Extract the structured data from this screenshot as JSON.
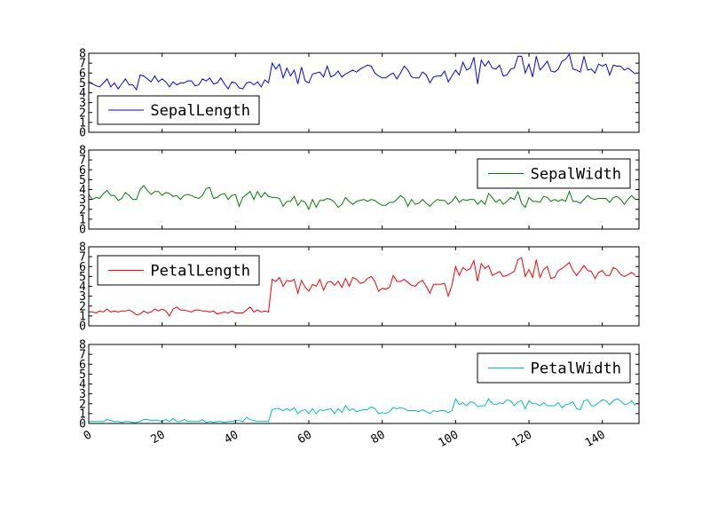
{
  "chart_data": {
    "type": "line",
    "x": [
      0,
      1,
      2,
      3,
      4,
      5,
      6,
      7,
      8,
      9,
      10,
      11,
      12,
      13,
      14,
      15,
      16,
      17,
      18,
      19,
      20,
      21,
      22,
      23,
      24,
      25,
      26,
      27,
      28,
      29,
      30,
      31,
      32,
      33,
      34,
      35,
      36,
      37,
      38,
      39,
      40,
      41,
      42,
      43,
      44,
      45,
      46,
      47,
      48,
      49,
      50,
      51,
      52,
      53,
      54,
      55,
      56,
      57,
      58,
      59,
      60,
      61,
      62,
      63,
      64,
      65,
      66,
      67,
      68,
      69,
      70,
      71,
      72,
      73,
      74,
      75,
      76,
      77,
      78,
      79,
      80,
      81,
      82,
      83,
      84,
      85,
      86,
      87,
      88,
      89,
      90,
      91,
      92,
      93,
      94,
      95,
      96,
      97,
      98,
      99,
      100,
      101,
      102,
      103,
      104,
      105,
      106,
      107,
      108,
      109,
      110,
      111,
      112,
      113,
      114,
      115,
      116,
      117,
      118,
      119,
      120,
      121,
      122,
      123,
      124,
      125,
      126,
      127,
      128,
      129,
      130,
      131,
      132,
      133,
      134,
      135,
      136,
      137,
      138,
      139,
      140,
      141,
      142,
      143,
      144,
      145,
      146,
      147,
      148,
      149
    ],
    "xlim": [
      0,
      150
    ],
    "xticks": [
      "0",
      "20",
      "40",
      "60",
      "80",
      "100",
      "120",
      "140"
    ],
    "ylim": [
      0,
      8
    ],
    "yticks": [
      "0",
      "1",
      "2",
      "3",
      "4",
      "5",
      "6",
      "7",
      "8"
    ],
    "series": [
      {
        "name": "SepalLength",
        "color": "#0000ff",
        "legend_loc": "lower-left",
        "values": [
          5.1,
          4.9,
          4.7,
          4.6,
          5.0,
          5.4,
          4.6,
          5.0,
          4.4,
          4.9,
          5.4,
          4.8,
          4.8,
          4.3,
          5.8,
          5.7,
          5.4,
          5.1,
          5.7,
          5.1,
          5.4,
          5.1,
          4.6,
          5.1,
          4.8,
          5.0,
          5.0,
          5.2,
          5.2,
          4.7,
          4.8,
          5.4,
          5.2,
          5.5,
          4.9,
          5.0,
          5.5,
          4.9,
          4.4,
          5.1,
          5.0,
          4.5,
          4.4,
          5.0,
          5.1,
          4.8,
          5.1,
          4.6,
          5.3,
          5.0,
          7.0,
          6.4,
          6.9,
          5.5,
          6.5,
          5.7,
          6.3,
          4.9,
          6.6,
          5.2,
          5.0,
          5.9,
          6.0,
          6.1,
          5.6,
          6.7,
          5.6,
          5.8,
          6.2,
          5.6,
          5.9,
          6.1,
          6.3,
          6.1,
          6.4,
          6.6,
          6.8,
          6.7,
          6.0,
          5.7,
          5.5,
          5.5,
          5.8,
          6.0,
          5.4,
          6.0,
          6.7,
          6.3,
          5.6,
          5.5,
          5.5,
          6.1,
          5.8,
          5.0,
          5.6,
          5.7,
          5.7,
          6.2,
          5.1,
          5.7,
          6.3,
          5.8,
          7.1,
          6.3,
          6.5,
          7.6,
          4.9,
          7.3,
          6.7,
          7.2,
          6.5,
          6.4,
          6.8,
          5.7,
          5.8,
          6.4,
          6.5,
          7.7,
          7.7,
          6.0,
          6.9,
          5.6,
          7.7,
          6.3,
          6.7,
          7.2,
          6.2,
          6.1,
          6.4,
          7.2,
          7.4,
          7.9,
          6.4,
          6.3,
          6.1,
          7.7,
          6.3,
          6.4,
          6.0,
          6.9,
          6.7,
          6.9,
          5.8,
          6.8,
          6.7,
          6.7,
          6.3,
          6.5,
          6.2,
          5.9
        ]
      },
      {
        "name": "SepalWidth",
        "color": "#008000",
        "legend_loc": "upper-right",
        "values": [
          3.5,
          3.0,
          3.2,
          3.1,
          3.6,
          3.9,
          3.4,
          3.4,
          2.9,
          3.1,
          3.7,
          3.4,
          3.0,
          3.0,
          4.0,
          4.4,
          3.9,
          3.5,
          3.8,
          3.8,
          3.4,
          3.7,
          3.6,
          3.3,
          3.4,
          3.0,
          3.4,
          3.5,
          3.4,
          3.2,
          3.1,
          3.4,
          4.1,
          4.2,
          3.1,
          3.2,
          3.5,
          3.6,
          3.0,
          3.4,
          3.5,
          2.3,
          3.2,
          3.5,
          3.8,
          3.0,
          3.8,
          3.2,
          3.7,
          3.3,
          3.2,
          3.2,
          3.1,
          2.3,
          2.8,
          2.8,
          3.3,
          2.4,
          2.9,
          2.7,
          2.0,
          3.0,
          2.2,
          2.9,
          2.9,
          3.1,
          3.0,
          2.7,
          2.2,
          2.5,
          3.2,
          2.8,
          2.5,
          2.8,
          2.9,
          3.0,
          2.8,
          3.0,
          2.9,
          2.6,
          2.4,
          2.4,
          2.7,
          2.7,
          3.0,
          3.4,
          3.1,
          2.3,
          3.0,
          2.5,
          2.6,
          3.0,
          2.6,
          2.3,
          2.7,
          3.0,
          2.9,
          2.9,
          2.5,
          2.8,
          3.3,
          2.7,
          3.0,
          2.9,
          3.0,
          3.0,
          2.5,
          2.9,
          2.5,
          3.6,
          3.2,
          2.7,
          3.0,
          2.5,
          2.8,
          3.2,
          3.0,
          3.8,
          2.6,
          2.2,
          3.2,
          2.8,
          2.8,
          2.7,
          3.3,
          3.2,
          2.8,
          3.0,
          2.8,
          3.0,
          2.8,
          3.8,
          2.8,
          2.8,
          2.6,
          3.0,
          3.4,
          3.1,
          3.0,
          3.1,
          3.1,
          3.1,
          2.7,
          3.2,
          3.3,
          3.0,
          2.5,
          3.0,
          3.4,
          3.0
        ]
      },
      {
        "name": "PetalLength",
        "color": "#ff0000",
        "legend_loc": "upper-left",
        "values": [
          1.4,
          1.4,
          1.3,
          1.5,
          1.4,
          1.7,
          1.4,
          1.5,
          1.4,
          1.5,
          1.5,
          1.6,
          1.4,
          1.1,
          1.2,
          1.5,
          1.3,
          1.4,
          1.7,
          1.5,
          1.7,
          1.5,
          1.0,
          1.7,
          1.9,
          1.6,
          1.6,
          1.5,
          1.4,
          1.6,
          1.6,
          1.5,
          1.5,
          1.4,
          1.5,
          1.2,
          1.3,
          1.4,
          1.3,
          1.5,
          1.3,
          1.3,
          1.3,
          1.6,
          1.9,
          1.4,
          1.6,
          1.4,
          1.5,
          1.4,
          4.7,
          4.5,
          4.9,
          4.0,
          4.6,
          4.5,
          4.7,
          3.3,
          4.6,
          3.9,
          3.5,
          4.2,
          4.0,
          4.7,
          3.6,
          4.4,
          4.5,
          4.1,
          4.5,
          3.9,
          4.8,
          4.0,
          4.9,
          4.7,
          4.3,
          4.4,
          4.8,
          5.0,
          4.5,
          3.5,
          3.8,
          3.7,
          3.9,
          5.1,
          4.5,
          4.5,
          4.7,
          4.4,
          4.1,
          4.0,
          4.4,
          4.6,
          4.0,
          3.3,
          4.2,
          4.2,
          4.2,
          4.3,
          3.0,
          4.1,
          6.0,
          5.1,
          5.9,
          5.6,
          5.8,
          6.6,
          4.5,
          6.3,
          5.8,
          6.1,
          5.1,
          5.3,
          5.5,
          5.0,
          5.1,
          5.3,
          5.5,
          6.7,
          6.9,
          5.0,
          5.7,
          4.9,
          6.7,
          4.9,
          5.7,
          6.0,
          4.8,
          4.9,
          5.6,
          5.8,
          6.1,
          6.4,
          5.6,
          5.1,
          5.6,
          6.1,
          5.6,
          5.5,
          4.8,
          5.4,
          5.6,
          5.1,
          5.1,
          5.9,
          5.7,
          5.2,
          5.0,
          5.2,
          5.4,
          5.1
        ]
      },
      {
        "name": "PetalWidth",
        "color": "#00bfbf",
        "legend_loc": "upper-right",
        "values": [
          0.2,
          0.2,
          0.2,
          0.2,
          0.2,
          0.4,
          0.3,
          0.2,
          0.2,
          0.1,
          0.2,
          0.2,
          0.1,
          0.1,
          0.2,
          0.4,
          0.4,
          0.3,
          0.3,
          0.3,
          0.2,
          0.4,
          0.2,
          0.5,
          0.2,
          0.2,
          0.4,
          0.2,
          0.2,
          0.2,
          0.2,
          0.4,
          0.1,
          0.2,
          0.1,
          0.2,
          0.2,
          0.1,
          0.2,
          0.2,
          0.3,
          0.3,
          0.2,
          0.6,
          0.4,
          0.3,
          0.2,
          0.2,
          0.2,
          0.2,
          1.4,
          1.5,
          1.5,
          1.3,
          1.5,
          1.3,
          1.6,
          1.0,
          1.3,
          1.4,
          1.0,
          1.5,
          1.0,
          1.4,
          1.3,
          1.4,
          1.5,
          1.0,
          1.5,
          1.1,
          1.8,
          1.3,
          1.5,
          1.2,
          1.3,
          1.4,
          1.4,
          1.7,
          1.5,
          1.0,
          1.1,
          1.0,
          1.2,
          1.6,
          1.5,
          1.6,
          1.5,
          1.3,
          1.3,
          1.3,
          1.2,
          1.4,
          1.2,
          1.0,
          1.3,
          1.2,
          1.3,
          1.3,
          1.1,
          1.3,
          2.5,
          1.9,
          2.1,
          1.8,
          2.2,
          2.1,
          1.7,
          1.8,
          1.8,
          2.5,
          2.0,
          1.9,
          2.1,
          2.0,
          2.4,
          2.3,
          1.8,
          2.2,
          2.3,
          1.5,
          2.3,
          2.0,
          2.0,
          1.8,
          2.1,
          1.8,
          1.8,
          1.8,
          2.1,
          1.6,
          1.9,
          2.0,
          2.2,
          1.5,
          1.4,
          2.3,
          2.4,
          1.8,
          1.8,
          2.1,
          2.4,
          2.3,
          1.9,
          2.3,
          2.5,
          2.3,
          1.9,
          2.0,
          2.3,
          1.8
        ]
      }
    ],
    "grid": false
  }
}
